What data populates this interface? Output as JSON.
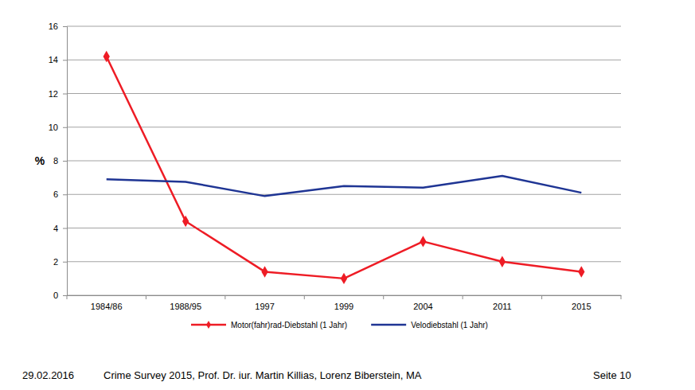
{
  "chart_data": {
    "type": "line",
    "ylabel": "%",
    "categories": [
      "1984/86",
      "1988/95",
      "1997",
      "1999",
      "2004",
      "2011",
      "2015"
    ],
    "series": [
      {
        "name": "Motor(fahr)rad-Diebstahl (1 Jahr)",
        "color": "#ee1c25",
        "marker": "diamond",
        "values": [
          14.2,
          4.4,
          1.4,
          1.0,
          3.2,
          2.0,
          1.4
        ]
      },
      {
        "name": "Velodiebstahl (1 Jahr)",
        "color": "#1f3594",
        "marker": "none",
        "values": [
          6.9,
          6.75,
          5.9,
          6.5,
          6.4,
          7.1,
          6.1
        ]
      }
    ],
    "ylim": [
      0,
      16
    ],
    "yticks": [
      0,
      2,
      4,
      6,
      8,
      10,
      12,
      14,
      16
    ],
    "grid": true,
    "legend": "bottom"
  },
  "footer": {
    "date": "29.02.2016",
    "source": "Crime Survey 2015, Prof. Dr. iur. Martin Killias, Lorenz Biberstein, MA",
    "page": "Seite 10"
  }
}
